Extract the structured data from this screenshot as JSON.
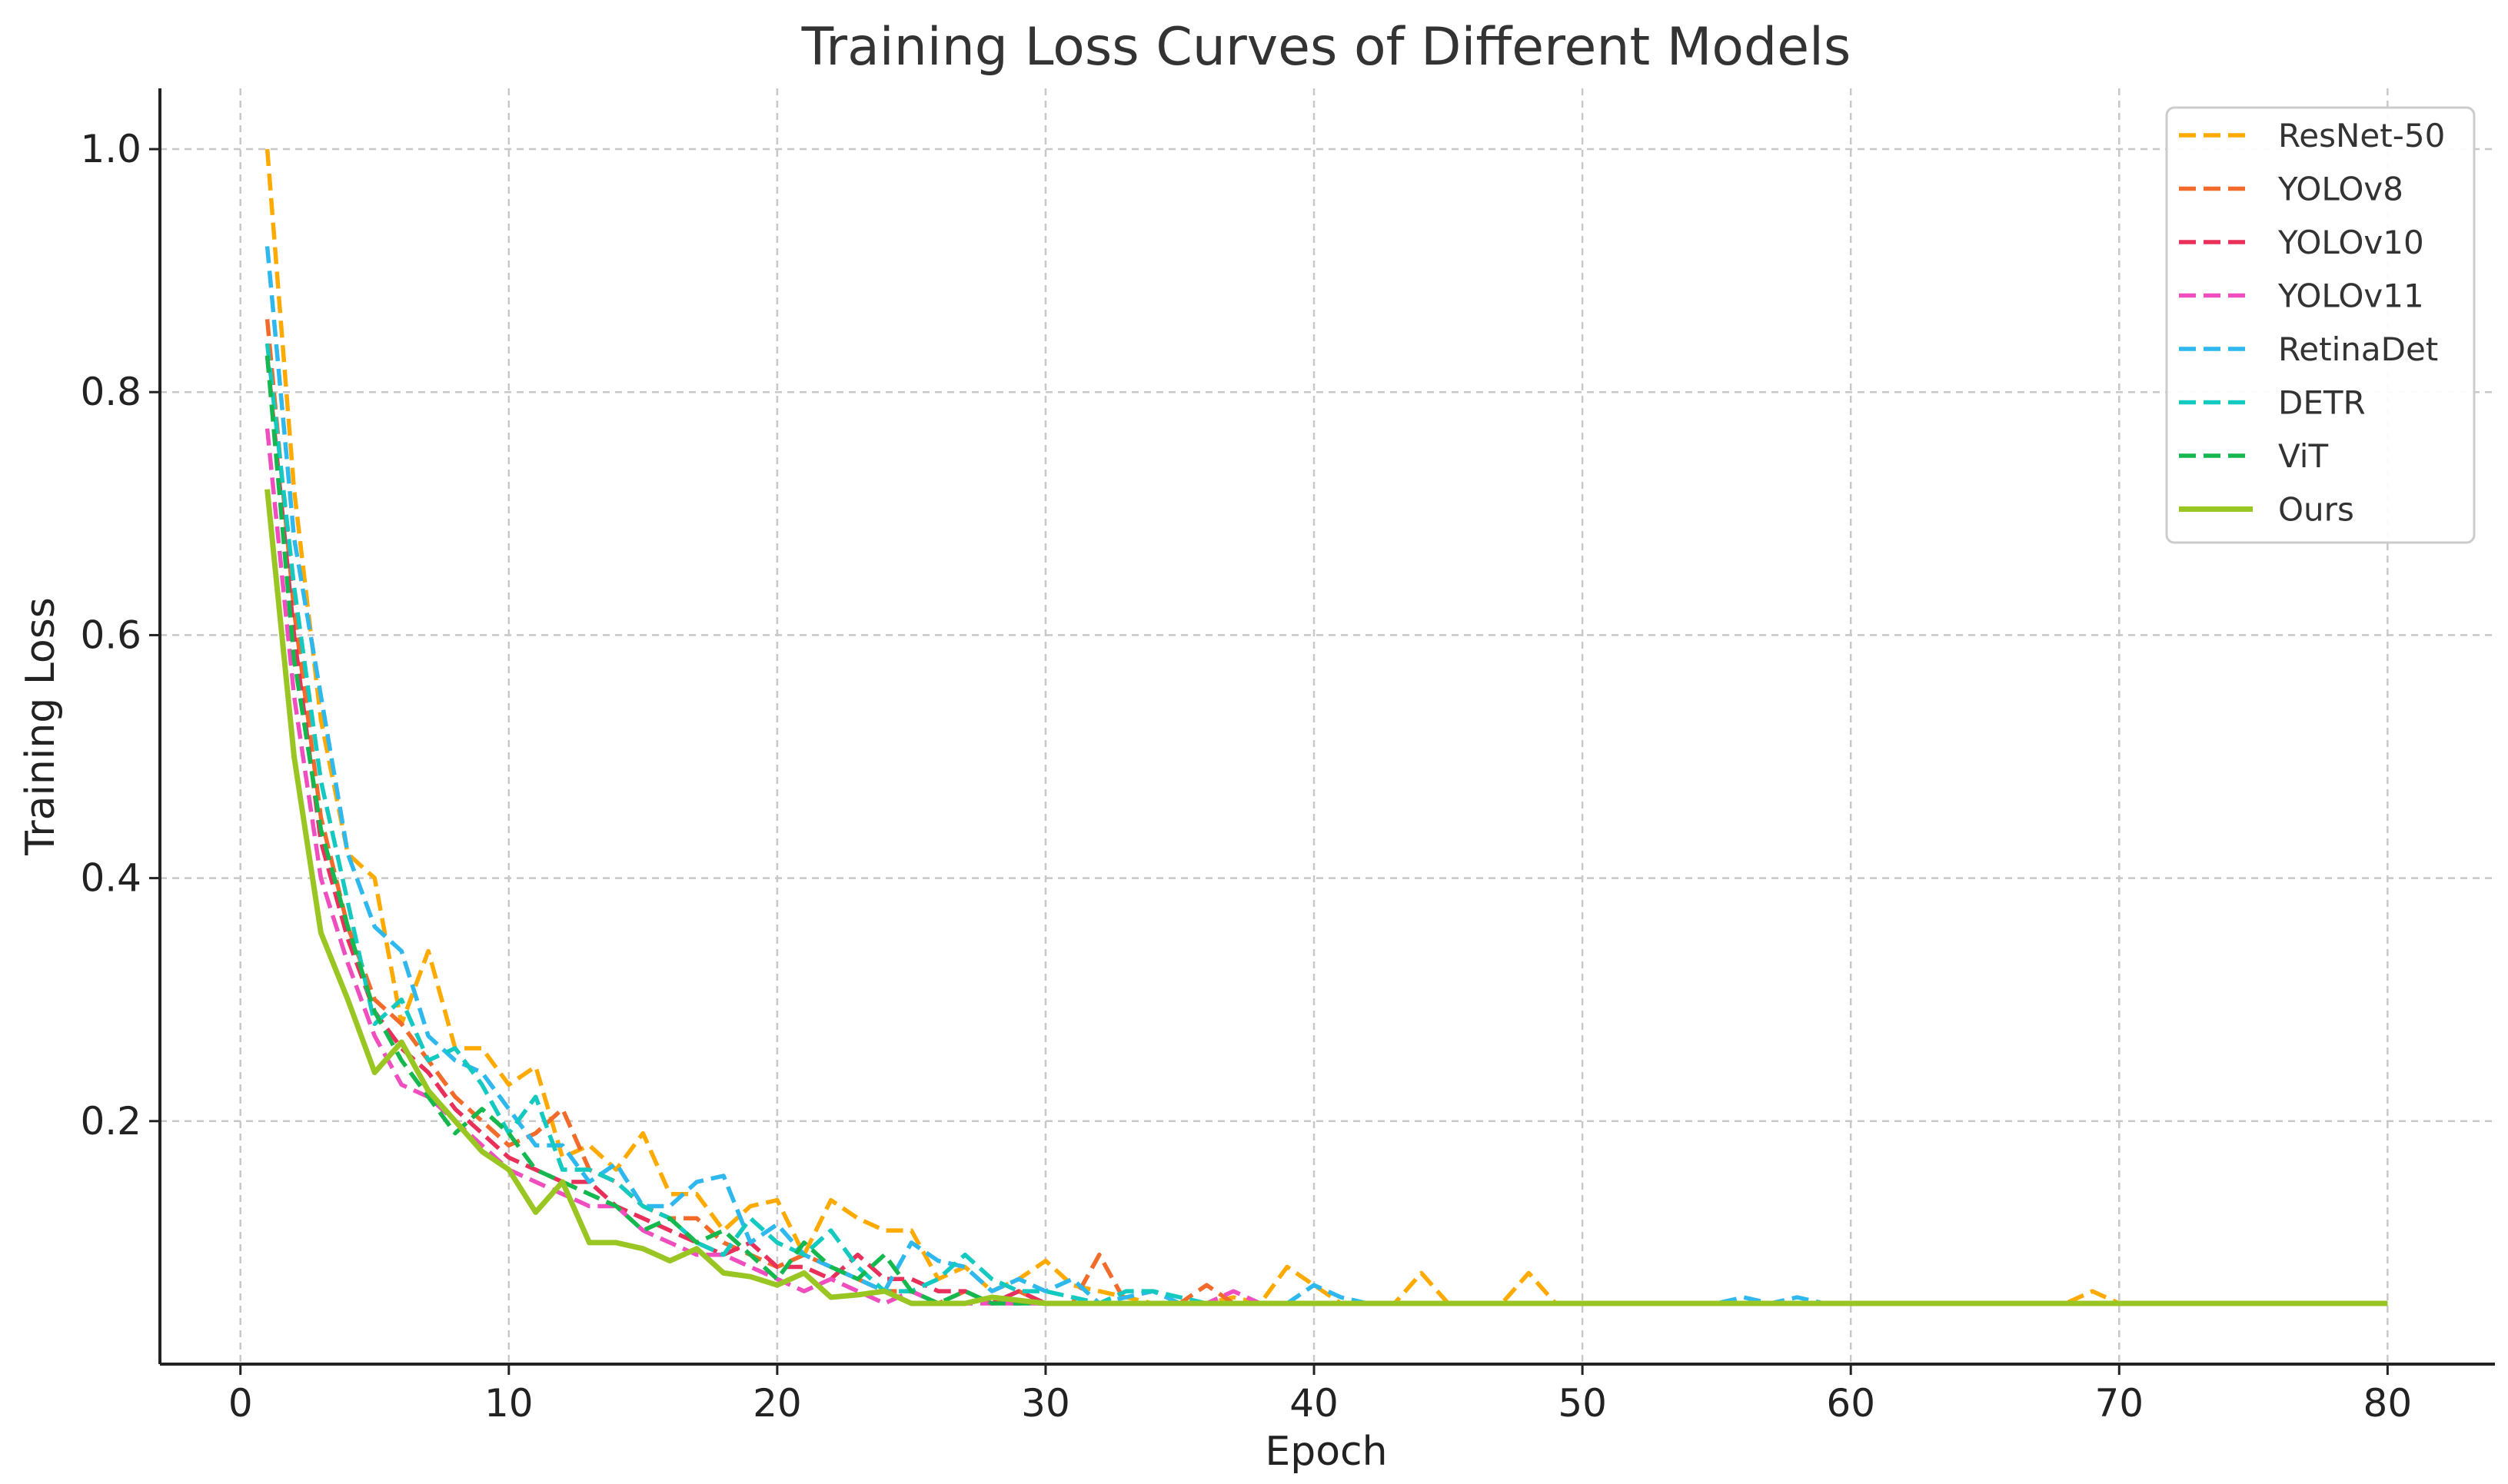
{
  "chart_data": {
    "type": "line",
    "title": "Training Loss Curves of Different Models",
    "xlabel": "Epoch",
    "ylabel": "Training Loss",
    "xlim": [
      -3,
      84
    ],
    "ylim": [
      0.0,
      1.05
    ],
    "xticks": [
      0,
      10,
      20,
      30,
      40,
      50,
      60,
      70,
      80
    ],
    "xtick_labels": [
      "0",
      "10",
      "20",
      "30",
      "40",
      "50",
      "60",
      "70",
      "80"
    ],
    "yticks": [
      0.2,
      0.4,
      0.6,
      0.8,
      1.0
    ],
    "ytick_labels": [
      "0.2",
      "0.4",
      "0.6",
      "0.8",
      "1.0"
    ],
    "grid": true,
    "legend_position": "top-right",
    "series": [
      {
        "name": "ResNet-50",
        "color": "#FFAA00",
        "style": "dashed",
        "x": [
          1,
          2,
          3,
          4,
          5,
          6,
          7,
          8,
          9,
          10,
          11,
          12,
          13,
          14,
          15,
          16,
          17,
          18,
          19,
          20,
          21,
          22,
          23,
          24,
          25,
          26,
          27,
          28,
          29,
          30,
          31,
          32,
          33,
          34,
          35,
          36,
          37,
          38,
          39,
          40,
          41,
          42,
          43,
          44,
          45,
          46,
          47,
          48,
          49,
          50,
          55,
          60,
          65,
          68,
          69,
          70,
          75,
          80
        ],
        "y": [
          1.0,
          0.72,
          0.53,
          0.42,
          0.4,
          0.28,
          0.34,
          0.26,
          0.26,
          0.23,
          0.245,
          0.17,
          0.18,
          0.16,
          0.19,
          0.14,
          0.14,
          0.11,
          0.13,
          0.135,
          0.09,
          0.135,
          0.12,
          0.11,
          0.11,
          0.07,
          0.08,
          0.06,
          0.07,
          0.085,
          0.065,
          0.06,
          0.055,
          0.05,
          0.05,
          0.05,
          0.055,
          0.05,
          0.08,
          0.065,
          0.05,
          0.05,
          0.05,
          0.075,
          0.05,
          0.05,
          0.05,
          0.075,
          0.05,
          0.05,
          0.05,
          0.05,
          0.05,
          0.05,
          0.06,
          0.05,
          0.05,
          0.05
        ]
      },
      {
        "name": "YOLOv8",
        "color": "#F26B2A",
        "style": "dashed",
        "x": [
          1,
          2,
          3,
          4,
          5,
          6,
          7,
          8,
          9,
          10,
          11,
          12,
          13,
          14,
          15,
          16,
          17,
          18,
          19,
          20,
          21,
          22,
          23,
          24,
          25,
          26,
          27,
          28,
          29,
          30,
          31,
          32,
          33,
          34,
          35,
          36,
          37,
          38,
          39,
          40,
          42,
          44,
          46,
          50,
          60,
          70,
          80
        ],
        "y": [
          0.86,
          0.62,
          0.45,
          0.36,
          0.3,
          0.28,
          0.25,
          0.22,
          0.2,
          0.18,
          0.19,
          0.21,
          0.16,
          0.15,
          0.13,
          0.12,
          0.12,
          0.1,
          0.09,
          0.08,
          0.09,
          0.08,
          0.07,
          0.06,
          0.06,
          0.05,
          0.06,
          0.05,
          0.06,
          0.05,
          0.05,
          0.09,
          0.05,
          0.05,
          0.05,
          0.065,
          0.05,
          0.05,
          0.05,
          0.05,
          0.05,
          0.05,
          0.05,
          0.05,
          0.05,
          0.05,
          0.05
        ]
      },
      {
        "name": "YOLOv10",
        "color": "#E8305A",
        "style": "dashed",
        "x": [
          1,
          2,
          3,
          4,
          5,
          6,
          7,
          8,
          9,
          10,
          11,
          12,
          13,
          14,
          15,
          16,
          17,
          18,
          19,
          20,
          21,
          22,
          23,
          24,
          25,
          26,
          27,
          28,
          29,
          30,
          32,
          34,
          36,
          38,
          40,
          45,
          50,
          60,
          70,
          80
        ],
        "y": [
          0.83,
          0.6,
          0.43,
          0.35,
          0.29,
          0.26,
          0.24,
          0.21,
          0.19,
          0.17,
          0.16,
          0.15,
          0.15,
          0.13,
          0.12,
          0.11,
          0.1,
          0.09,
          0.1,
          0.08,
          0.08,
          0.07,
          0.09,
          0.07,
          0.07,
          0.06,
          0.06,
          0.05,
          0.06,
          0.05,
          0.05,
          0.05,
          0.05,
          0.05,
          0.05,
          0.05,
          0.05,
          0.05,
          0.05,
          0.05
        ]
      },
      {
        "name": "YOLOv11",
        "color": "#F04DBE",
        "style": "dashed",
        "x": [
          1,
          2,
          3,
          4,
          5,
          6,
          7,
          8,
          9,
          10,
          11,
          12,
          13,
          14,
          15,
          16,
          17,
          18,
          19,
          20,
          21,
          22,
          23,
          24,
          25,
          26,
          27,
          28,
          29,
          30,
          32,
          34,
          36,
          37,
          38,
          40,
          45,
          50,
          60,
          70,
          80
        ],
        "y": [
          0.77,
          0.55,
          0.4,
          0.33,
          0.27,
          0.23,
          0.22,
          0.2,
          0.18,
          0.16,
          0.15,
          0.14,
          0.13,
          0.13,
          0.11,
          0.1,
          0.09,
          0.09,
          0.08,
          0.07,
          0.06,
          0.07,
          0.06,
          0.05,
          0.06,
          0.05,
          0.05,
          0.05,
          0.05,
          0.05,
          0.05,
          0.05,
          0.05,
          0.06,
          0.05,
          0.05,
          0.05,
          0.05,
          0.05,
          0.05,
          0.05
        ]
      },
      {
        "name": "RetinaDet",
        "color": "#2EB8EE",
        "style": "dashed",
        "x": [
          1,
          2,
          3,
          4,
          5,
          6,
          7,
          8,
          9,
          10,
          11,
          12,
          13,
          14,
          15,
          16,
          17,
          18,
          19,
          20,
          21,
          22,
          23,
          24,
          25,
          26,
          27,
          28,
          29,
          30,
          31,
          32,
          33,
          34,
          35,
          36,
          37,
          38,
          39,
          40,
          41,
          42,
          45,
          50,
          55,
          56,
          57,
          58,
          59,
          60,
          70,
          80
        ],
        "y": [
          0.92,
          0.68,
          0.55,
          0.42,
          0.36,
          0.34,
          0.27,
          0.25,
          0.24,
          0.21,
          0.18,
          0.18,
          0.15,
          0.165,
          0.13,
          0.13,
          0.15,
          0.155,
          0.1,
          0.115,
          0.09,
          0.08,
          0.07,
          0.06,
          0.1,
          0.085,
          0.08,
          0.06,
          0.07,
          0.06,
          0.07,
          0.05,
          0.055,
          0.06,
          0.05,
          0.05,
          0.05,
          0.05,
          0.05,
          0.065,
          0.055,
          0.05,
          0.05,
          0.05,
          0.05,
          0.055,
          0.05,
          0.055,
          0.05,
          0.05,
          0.05,
          0.05
        ]
      },
      {
        "name": "DETR",
        "color": "#14C9C0",
        "style": "dashed",
        "x": [
          1,
          2,
          3,
          4,
          5,
          6,
          7,
          8,
          9,
          10,
          11,
          12,
          13,
          14,
          15,
          16,
          17,
          18,
          19,
          20,
          21,
          22,
          23,
          24,
          25,
          26,
          27,
          28,
          29,
          30,
          31,
          32,
          33,
          34,
          35,
          36,
          38,
          40,
          45,
          50,
          60,
          70,
          80
        ],
        "y": [
          0.84,
          0.64,
          0.48,
          0.38,
          0.28,
          0.3,
          0.25,
          0.26,
          0.23,
          0.19,
          0.22,
          0.16,
          0.16,
          0.15,
          0.13,
          0.12,
          0.1,
          0.09,
          0.12,
          0.1,
          0.09,
          0.11,
          0.08,
          0.06,
          0.06,
          0.07,
          0.09,
          0.07,
          0.06,
          0.06,
          0.055,
          0.05,
          0.06,
          0.06,
          0.055,
          0.05,
          0.05,
          0.05,
          0.05,
          0.05,
          0.05,
          0.05,
          0.05
        ]
      },
      {
        "name": "ViT",
        "color": "#14B84E",
        "style": "dashed",
        "x": [
          1,
          2,
          3,
          4,
          5,
          6,
          7,
          8,
          9,
          10,
          11,
          12,
          13,
          14,
          15,
          16,
          17,
          18,
          19,
          20,
          21,
          22,
          23,
          24,
          25,
          26,
          27,
          28,
          29,
          30,
          32,
          34,
          36,
          38,
          40,
          45,
          50,
          60,
          70,
          80
        ],
        "y": [
          0.83,
          0.58,
          0.44,
          0.36,
          0.29,
          0.25,
          0.22,
          0.19,
          0.21,
          0.19,
          0.16,
          0.15,
          0.14,
          0.13,
          0.11,
          0.12,
          0.1,
          0.11,
          0.09,
          0.07,
          0.1,
          0.08,
          0.07,
          0.09,
          0.06,
          0.05,
          0.06,
          0.05,
          0.05,
          0.05,
          0.05,
          0.05,
          0.05,
          0.05,
          0.05,
          0.05,
          0.05,
          0.05,
          0.05,
          0.05
        ]
      },
      {
        "name": "Ours",
        "color": "#9AC623",
        "style": "solid",
        "x": [
          1,
          2,
          3,
          4,
          5,
          6,
          7,
          8,
          9,
          10,
          11,
          12,
          13,
          14,
          15,
          16,
          17,
          18,
          19,
          20,
          21,
          22,
          23,
          24,
          25,
          26,
          27,
          28,
          30,
          35,
          40,
          45,
          50,
          60,
          70,
          80
        ],
        "y": [
          0.72,
          0.5,
          0.355,
          0.3,
          0.24,
          0.265,
          0.225,
          0.2,
          0.175,
          0.16,
          0.125,
          0.15,
          0.1,
          0.1,
          0.095,
          0.085,
          0.095,
          0.075,
          0.072,
          0.065,
          0.075,
          0.055,
          0.057,
          0.06,
          0.05,
          0.05,
          0.05,
          0.055,
          0.05,
          0.05,
          0.05,
          0.05,
          0.05,
          0.05,
          0.05,
          0.05
        ]
      }
    ]
  }
}
